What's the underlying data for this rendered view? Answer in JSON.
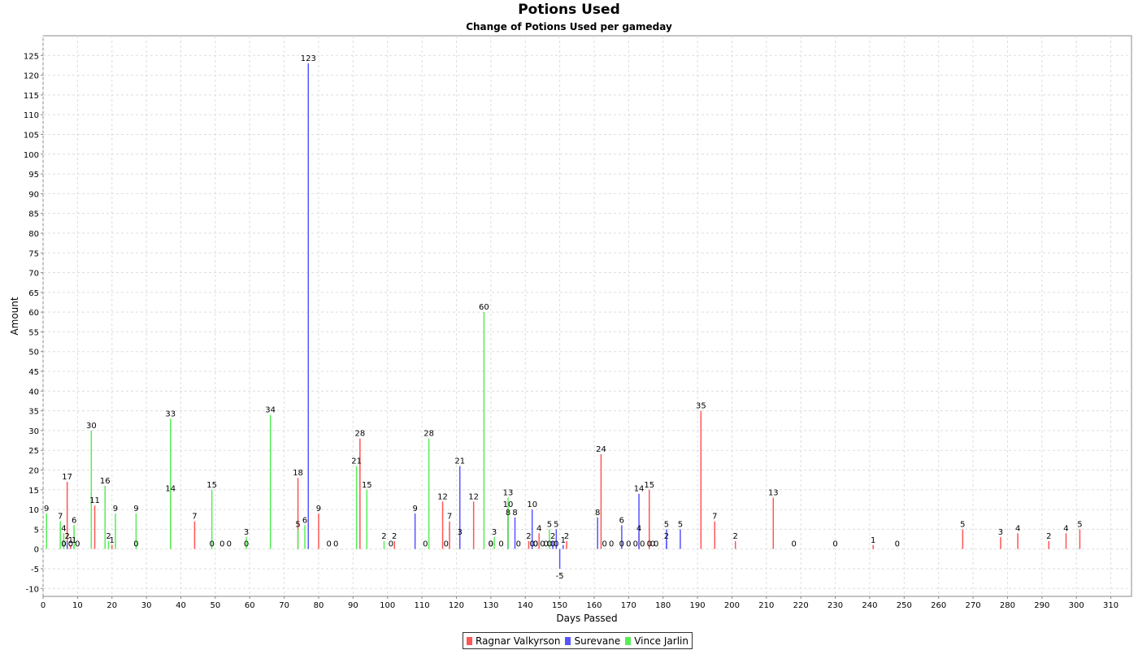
{
  "chart_data": {
    "type": "bar",
    "title": "Potions Used",
    "subtitle": "Change of Potions Used per gameday",
    "xlabel": "Days Passed",
    "ylabel": "Amount",
    "xlim": [
      0,
      316
    ],
    "ylim": [
      -12,
      130
    ],
    "xticks": [
      0,
      10,
      20,
      30,
      40,
      50,
      60,
      70,
      80,
      90,
      100,
      110,
      120,
      130,
      140,
      150,
      160,
      170,
      180,
      190,
      200,
      210,
      220,
      230,
      240,
      250,
      260,
      270,
      280,
      290,
      300,
      310
    ],
    "yticks": [
      -10,
      -5,
      0,
      5,
      10,
      15,
      20,
      25,
      30,
      35,
      40,
      45,
      50,
      55,
      60,
      65,
      70,
      75,
      80,
      85,
      90,
      95,
      100,
      105,
      110,
      115,
      120,
      125
    ],
    "grid": true,
    "legend_position": "bottom",
    "series": [
      {
        "name": "Ragnar Valkyrson",
        "color": "#ff5555",
        "points": [
          [
            6,
            0
          ],
          [
            7,
            17
          ],
          [
            8,
            1
          ],
          [
            10,
            0
          ],
          [
            15,
            11
          ],
          [
            20,
            1
          ],
          [
            37,
            14
          ],
          [
            44,
            7
          ],
          [
            49,
            0
          ],
          [
            52,
            0
          ],
          [
            54,
            0
          ],
          [
            59,
            0
          ],
          [
            74,
            18
          ],
          [
            80,
            9
          ],
          [
            83,
            0
          ],
          [
            85,
            0
          ],
          [
            92,
            28
          ],
          [
            101,
            0
          ],
          [
            102,
            2
          ],
          [
            111,
            0
          ],
          [
            116,
            12
          ],
          [
            117,
            0
          ],
          [
            118,
            7
          ],
          [
            125,
            12
          ],
          [
            130,
            0
          ],
          [
            133,
            0
          ],
          [
            135,
            10
          ],
          [
            141,
            2
          ],
          [
            142,
            0
          ],
          [
            143,
            0
          ],
          [
            144,
            4
          ],
          [
            145,
            0
          ],
          [
            146,
            0
          ],
          [
            147,
            0
          ],
          [
            148,
            0
          ],
          [
            149,
            0
          ],
          [
            152,
            2
          ],
          [
            162,
            24
          ],
          [
            163,
            0
          ],
          [
            168,
            0
          ],
          [
            170,
            0
          ],
          [
            173,
            4
          ],
          [
            174,
            0
          ],
          [
            176,
            15
          ],
          [
            177,
            0
          ],
          [
            178,
            0
          ],
          [
            191,
            35
          ],
          [
            195,
            7
          ],
          [
            201,
            2
          ],
          [
            212,
            13
          ],
          [
            218,
            0
          ],
          [
            230,
            0
          ],
          [
            241,
            1
          ],
          [
            248,
            0
          ],
          [
            267,
            5
          ],
          [
            278,
            3
          ],
          [
            283,
            4
          ],
          [
            292,
            2
          ],
          [
            297,
            4
          ],
          [
            301,
            5
          ]
        ]
      },
      {
        "name": "Surevane",
        "color": "#5555ff",
        "points": [
          [
            6,
            0
          ],
          [
            7,
            2
          ],
          [
            77,
            123
          ],
          [
            108,
            9
          ],
          [
            121,
            3
          ],
          [
            121,
            21
          ],
          [
            130,
            0
          ],
          [
            135,
            8
          ],
          [
            137,
            8
          ],
          [
            138,
            0
          ],
          [
            142,
            10
          ],
          [
            143,
            0
          ],
          [
            148,
            2
          ],
          [
            149,
            5
          ],
          [
            150,
            -5
          ],
          [
            151,
            1
          ],
          [
            161,
            8
          ],
          [
            165,
            0
          ],
          [
            168,
            6
          ],
          [
            172,
            0
          ],
          [
            173,
            14
          ],
          [
            176,
            0
          ],
          [
            181,
            2
          ],
          [
            181,
            5
          ],
          [
            185,
            5
          ]
        ]
      },
      {
        "name": "Vince Jarlin",
        "color": "#55ee55",
        "points": [
          [
            1,
            9
          ],
          [
            5,
            7
          ],
          [
            6,
            4
          ],
          [
            8,
            0
          ],
          [
            9,
            1
          ],
          [
            9,
            6
          ],
          [
            14,
            30
          ],
          [
            18,
            16
          ],
          [
            19,
            2
          ],
          [
            21,
            9
          ],
          [
            27,
            0
          ],
          [
            27,
            9
          ],
          [
            37,
            33
          ],
          [
            49,
            15
          ],
          [
            59,
            3
          ],
          [
            66,
            34
          ],
          [
            74,
            5
          ],
          [
            76,
            6
          ],
          [
            91,
            21
          ],
          [
            94,
            15
          ],
          [
            99,
            2
          ],
          [
            112,
            28
          ],
          [
            128,
            60
          ],
          [
            131,
            3
          ],
          [
            135,
            13
          ],
          [
            147,
            5
          ]
        ]
      }
    ]
  }
}
